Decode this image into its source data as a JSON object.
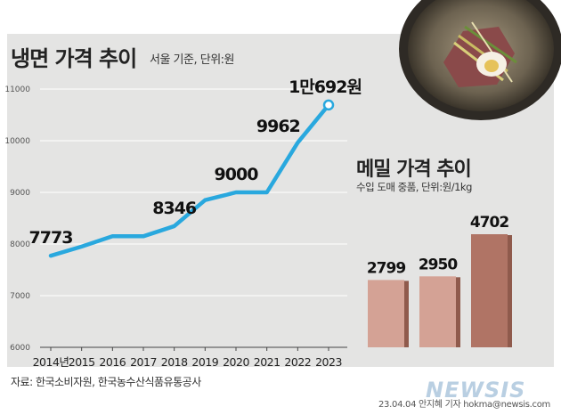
{
  "header": {
    "title": "냉면 가격 추이",
    "unit": "서울 기준, 단위:원"
  },
  "chart_data": [
    {
      "type": "line",
      "title": "냉면 가격 추이",
      "subtitle": "서울 기준, 단위:원",
      "x": [
        "2014년",
        "2015",
        "2016",
        "2017",
        "2018",
        "2019",
        "2020",
        "2021",
        "2022",
        "2023"
      ],
      "series": [
        {
          "values": [
            7773,
            7950,
            8150,
            8150,
            8346,
            8850,
            9000,
            9000,
            9962,
            10692
          ]
        }
      ],
      "labels": [
        {
          "index": 0,
          "text": "7773"
        },
        {
          "index": 4,
          "text": "8346"
        },
        {
          "index": 6,
          "text": "9000"
        },
        {
          "index": 8,
          "text": "9962"
        },
        {
          "index": 9,
          "text": "1만692원"
        }
      ],
      "yticks": [
        "6000",
        "7000",
        "8000",
        "9000",
        "10000",
        "11000"
      ],
      "ylim": [
        6000,
        11000
      ],
      "grid": true,
      "color": "#29a8de"
    },
    {
      "type": "bar",
      "title": "메밀 가격 추이",
      "subtitle": "수입 도매 중품, 단위:원/1kg",
      "categories": [
        "",
        "",
        ""
      ],
      "values": [
        2799,
        2950,
        4702
      ],
      "labels": [
        "2799",
        "2950",
        "4702"
      ],
      "colors": [
        "#d4a295",
        "#d4a295",
        "#b07465"
      ]
    }
  ],
  "footer": {
    "source": "자료: 한국소비자원, 한국농수산식품유통공사",
    "credit": "23.04.04 안지혜 기자 hokma@newsis.com",
    "watermark": "NEWSIS"
  }
}
